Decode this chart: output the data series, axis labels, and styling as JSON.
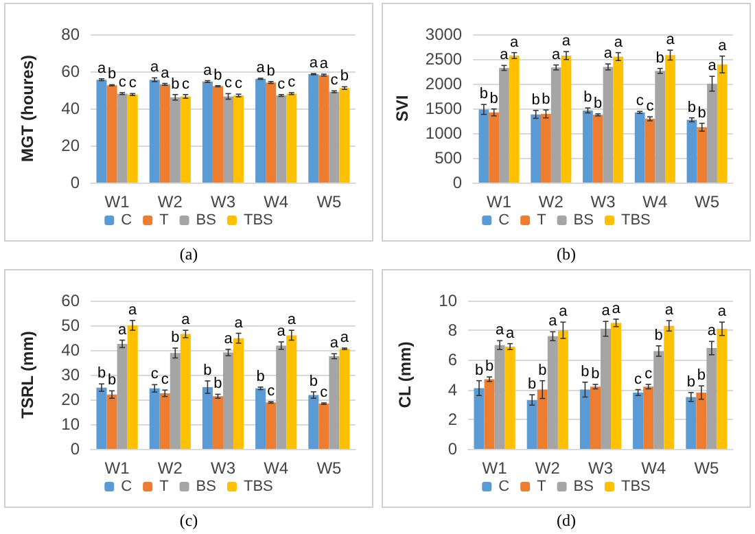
{
  "chart_data": [
    {
      "type": "bar",
      "ylabel": "MGT (houres)",
      "categories": [
        "W1",
        "W2",
        "W3",
        "W4",
        "W5"
      ],
      "ylim": [
        0,
        80
      ],
      "yticks": [
        0,
        20,
        40,
        60,
        80
      ],
      "grid": "y",
      "legend": "bottom",
      "annotations": [
        "(a)"
      ],
      "series": [
        {
          "name": "C",
          "color": "#5b9bd5",
          "values": [
            55.5,
            55.5,
            54.5,
            56,
            58.5
          ],
          "errors": [
            0.5,
            1,
            0.5,
            0.3,
            0.3
          ],
          "value_labels": [
            "a",
            "a",
            "a",
            "a",
            "a"
          ]
        },
        {
          "name": "T",
          "color": "#ed7d31",
          "values": [
            52.5,
            53,
            52,
            54,
            58
          ],
          "errors": [
            0.3,
            0.5,
            0.3,
            0.5,
            0.5
          ],
          "value_labels": [
            "b",
            "a",
            "b",
            "b",
            "a"
          ]
        },
        {
          "name": "BS",
          "color": "#a5a5a5",
          "values": [
            48,
            46,
            46.5,
            47,
            49
          ],
          "errors": [
            0.5,
            1.5,
            1.5,
            0.5,
            0.5
          ],
          "value_labels": [
            "c",
            "b",
            "c",
            "c",
            "c"
          ]
        },
        {
          "name": "TBS",
          "color": "#ffc000",
          "values": [
            47.5,
            46.5,
            47,
            48,
            51
          ],
          "errors": [
            0.5,
            1,
            0.7,
            0.5,
            0.7
          ],
          "value_labels": [
            "c",
            "c",
            "c",
            "c",
            "b"
          ]
        }
      ]
    },
    {
      "type": "bar",
      "ylabel": "SVI",
      "categories": [
        "W1",
        "W2",
        "W3",
        "W4",
        "W5"
      ],
      "ylim": [
        0,
        3000
      ],
      "yticks": [
        0,
        500,
        1000,
        1500,
        2000,
        2500,
        3000
      ],
      "grid": "y",
      "legend": "bottom",
      "annotations": [
        "(b)"
      ],
      "series": [
        {
          "name": "C",
          "color": "#5b9bd5",
          "values": [
            1480,
            1380,
            1460,
            1420,
            1270
          ],
          "errors": [
            100,
            80,
            50,
            20,
            40
          ],
          "value_labels": [
            "b",
            "b",
            "b",
            "c",
            "b"
          ]
        },
        {
          "name": "T",
          "color": "#ed7d31",
          "values": [
            1420,
            1390,
            1370,
            1290,
            1120
          ],
          "errors": [
            70,
            80,
            20,
            40,
            80
          ],
          "value_labels": [
            "b",
            "b",
            "b",
            "c",
            "b"
          ]
        },
        {
          "name": "BS",
          "color": "#a5a5a5",
          "values": [
            2320,
            2330,
            2340,
            2260,
            2000
          ],
          "errors": [
            50,
            50,
            60,
            50,
            150
          ],
          "value_labels": [
            "a",
            "a",
            "a",
            "b",
            "a"
          ]
        },
        {
          "name": "TBS",
          "color": "#ffc000",
          "values": [
            2570,
            2570,
            2550,
            2580,
            2390
          ],
          "errors": [
            60,
            80,
            80,
            100,
            170
          ],
          "value_labels": [
            "a",
            "a",
            "a",
            "a",
            "a"
          ]
        }
      ]
    },
    {
      "type": "bar",
      "ylabel": "TSRL (mm)",
      "categories": [
        "W1",
        "W2",
        "W3",
        "W4",
        "W5"
      ],
      "ylim": [
        0,
        60
      ],
      "yticks": [
        0,
        10,
        20,
        30,
        40,
        50,
        60
      ],
      "grid": "y",
      "legend": "bottom",
      "annotations": [
        "(c)"
      ],
      "series": [
        {
          "name": "C",
          "color": "#5b9bd5",
          "values": [
            24.8,
            24.5,
            25,
            24.5,
            21.8
          ],
          "errors": [
            1.5,
            1.5,
            2.5,
            0.5,
            1.3
          ],
          "value_labels": [
            "b",
            "c",
            "b",
            "b",
            "b"
          ]
        },
        {
          "name": "T",
          "color": "#ed7d31",
          "values": [
            22,
            22.5,
            21.3,
            18.8,
            18.3
          ],
          "errors": [
            1.5,
            1.3,
            0.8,
            0.3,
            0.3
          ],
          "value_labels": [
            "b",
            "c",
            "b",
            "c",
            "c"
          ]
        },
        {
          "name": "BS",
          "color": "#a5a5a5",
          "values": [
            42.5,
            38.8,
            39,
            41.8,
            37.5
          ],
          "errors": [
            1.5,
            2,
            1.3,
            1.5,
            1
          ],
          "value_labels": [
            "a",
            "b",
            "a",
            "a",
            "a"
          ]
        },
        {
          "name": "TBS",
          "color": "#ffc000",
          "values": [
            50,
            46.5,
            44.8,
            46,
            40.5
          ],
          "errors": [
            2,
            1.5,
            2,
            2,
            0.3
          ],
          "value_labels": [
            "a",
            "a",
            "a",
            "a",
            "a"
          ]
        }
      ]
    },
    {
      "type": "bar",
      "ylabel": "CL (mm)",
      "categories": [
        "W1",
        "W2",
        "W3",
        "W4",
        "W5"
      ],
      "ylim": [
        0,
        10
      ],
      "yticks": [
        0,
        2,
        4,
        6,
        8,
        10
      ],
      "grid": "y",
      "legend": "bottom",
      "annotations": [
        "(d)"
      ],
      "series": [
        {
          "name": "C",
          "color": "#5b9bd5",
          "values": [
            4.1,
            3.3,
            4.0,
            3.8,
            3.5
          ],
          "errors": [
            0.5,
            0.35,
            0.5,
            0.2,
            0.3
          ],
          "value_labels": [
            "b",
            "b",
            "b",
            "c",
            "b"
          ]
        },
        {
          "name": "T",
          "color": "#ed7d31",
          "values": [
            4.7,
            4.0,
            4.2,
            4.2,
            3.8
          ],
          "errors": [
            0.15,
            0.6,
            0.15,
            0.15,
            0.45
          ],
          "value_labels": [
            "b",
            "b",
            "b",
            "c",
            "b"
          ]
        },
        {
          "name": "BS",
          "color": "#a5a5a5",
          "values": [
            7.0,
            7.6,
            8.1,
            6.6,
            6.8
          ],
          "errors": [
            0.3,
            0.3,
            0.5,
            0.35,
            0.45
          ],
          "value_labels": [
            "a",
            "a",
            "a",
            "b",
            "a"
          ]
        },
        {
          "name": "TBS",
          "color": "#ffc000",
          "values": [
            6.9,
            8.0,
            8.5,
            8.3,
            8.1
          ],
          "errors": [
            0.2,
            0.55,
            0.25,
            0.35,
            0.45
          ],
          "value_labels": [
            "a",
            "a",
            "a",
            "a",
            "a"
          ]
        }
      ]
    }
  ]
}
